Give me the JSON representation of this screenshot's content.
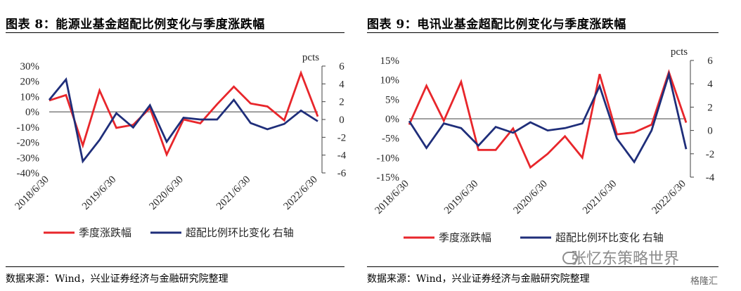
{
  "panels": [
    {
      "title": "图表 8：能源业基金超配比例变化与季度涨跌幅",
      "source": "数据来源：Wind，兴业证券经济与金融研究院整理"
    },
    {
      "title": "图表 9：电讯业基金超配比例变化与季度涨跌幅",
      "source": "数据来源：Wind，兴业证券经济与金融研究院整理"
    }
  ],
  "watermark": "张忆东策略世界",
  "stamp": "格隆汇",
  "chart_data": [
    {
      "type": "line",
      "x_tick_labels": [
        "2018/6/30",
        "2019/6/30",
        "2020/6/30",
        "2021/6/30",
        "2022/6/30"
      ],
      "y_left": {
        "min": -40,
        "max": 30,
        "ticks": [
          "30%",
          "20%",
          "10%",
          "0%",
          "-10%",
          "-20%",
          "-30%",
          "-40%"
        ]
      },
      "y_right": {
        "min": -6,
        "max": 6,
        "unit": "pcts",
        "ticks": [
          "6",
          "4",
          "2",
          "0",
          "-2",
          "-4",
          "-6"
        ]
      },
      "series": [
        {
          "name": "季度涨跌幅",
          "color": "#e8262b",
          "axis": "left",
          "values": [
            7.5,
            11,
            -22,
            14,
            -10.5,
            -8.5,
            2.5,
            -28,
            -5,
            -7.5,
            5,
            16.5,
            5.5,
            3.5,
            -5.5,
            25.5,
            -3
          ]
        },
        {
          "name": "超配比例环比变化 右轴",
          "color": "#1f2e7a",
          "axis": "right",
          "values": [
            2.2,
            4.5,
            -4.7,
            -2.3,
            0.7,
            -0.9,
            1.6,
            -2.5,
            0.2,
            0,
            0,
            2.2,
            -0.4,
            -1.1,
            -0.5,
            1,
            -0.2
          ]
        }
      ]
    },
    {
      "type": "line",
      "x_tick_labels": [
        "2018/6/30",
        "2019/6/30",
        "2020/6/30",
        "2021/6/30",
        "2022/6/30"
      ],
      "y_left": {
        "min": -15,
        "max": 15,
        "ticks": [
          "15%",
          "10%",
          "5%",
          "0%",
          "-5%",
          "-10%",
          "-15%"
        ]
      },
      "y_right": {
        "min": -4,
        "max": 6,
        "unit": "pcts",
        "ticks": [
          "6",
          "4",
          "2",
          "0",
          "-2",
          "-4"
        ]
      },
      "series": [
        {
          "name": "季度涨跌幅",
          "color": "#e8262b",
          "axis": "left",
          "values": [
            -1.5,
            8.5,
            -0.5,
            9.5,
            -8,
            -8,
            -2.5,
            -12.5,
            -9,
            -4.5,
            -10,
            11.5,
            -4,
            -3.5,
            -1.5,
            12,
            -1
          ]
        },
        {
          "name": "超配比例环比变化 右轴",
          "color": "#1f2e7a",
          "axis": "right",
          "values": [
            0.8,
            -1.5,
            0.6,
            0.2,
            -1.3,
            0.3,
            -0.2,
            0.7,
            0,
            0.2,
            0.6,
            3.8,
            -0.7,
            -2.7,
            0,
            4.8,
            -1.6
          ]
        }
      ]
    }
  ]
}
